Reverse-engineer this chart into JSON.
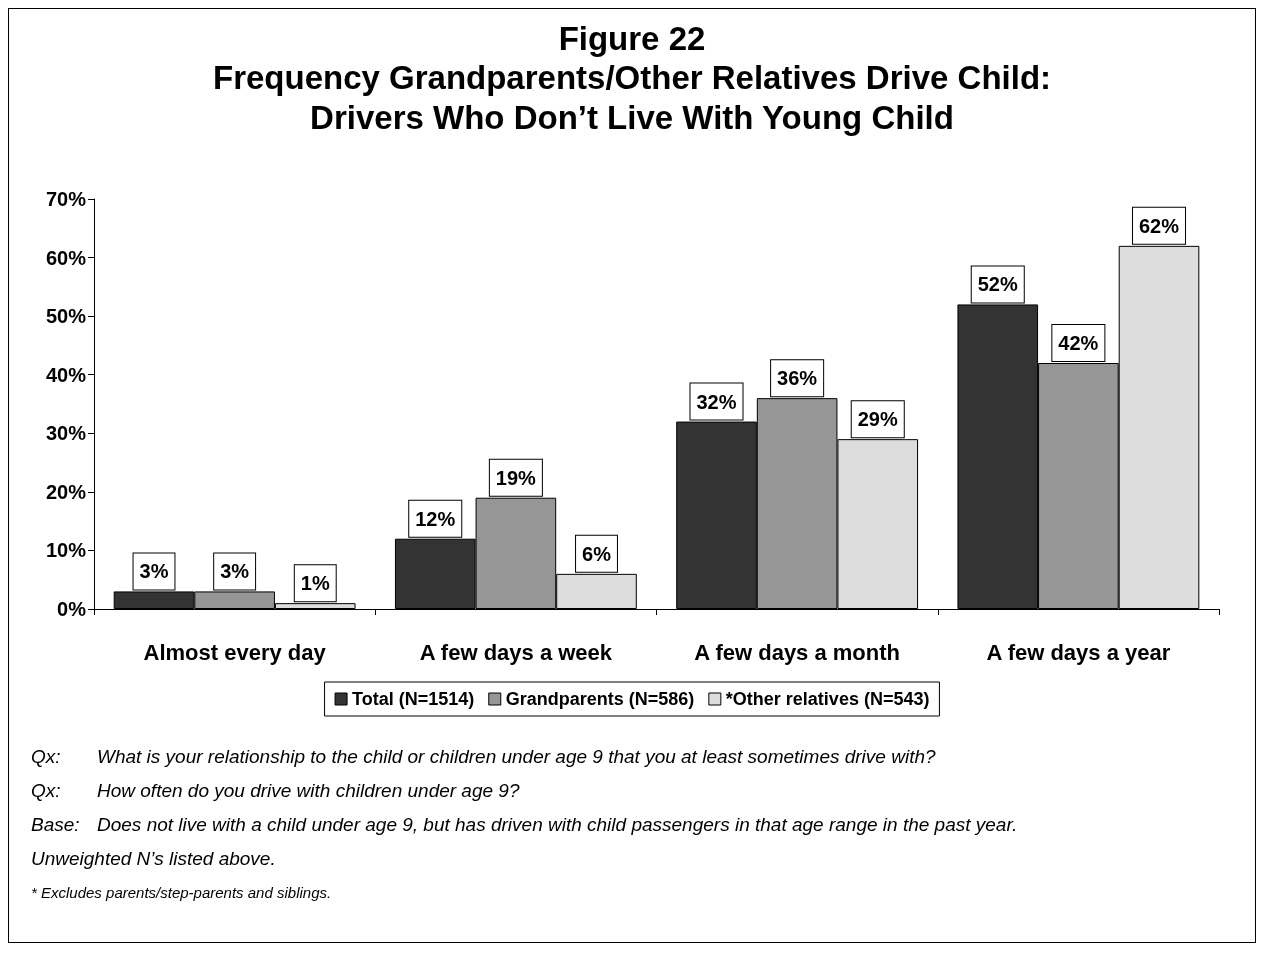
{
  "chart_data": {
    "type": "bar",
    "title": "Figure 22",
    "subtitle": "Frequency Grandparents/Other Relatives Drive Child:\nDrivers Who Don’t Live With Young Child",
    "categories": [
      "Almost every day",
      "A few days a week",
      "A few days a month",
      "A few days a year"
    ],
    "series": [
      {
        "name": "Total (N=1514)",
        "color": "#333333",
        "values": [
          3,
          12,
          32,
          52
        ],
        "value_labels": [
          "3%",
          "12%",
          "32%",
          "52%"
        ]
      },
      {
        "name": "Grandparents (N=586)",
        "color": "#969696",
        "values": [
          3,
          19,
          36,
          42
        ],
        "value_labels": [
          "3%",
          "19%",
          "36%",
          "42%"
        ]
      },
      {
        "name": "*Other relatives (N=543)",
        "color": "#dddddd",
        "values": [
          1,
          6,
          29,
          62
        ],
        "value_labels": [
          "1%",
          "6%",
          "29%",
          "62%"
        ]
      }
    ],
    "ylim": [
      0,
      70
    ],
    "yticks": [
      {
        "value": 0,
        "label": "0%"
      },
      {
        "value": 10,
        "label": "10%"
      },
      {
        "value": 20,
        "label": "20%"
      },
      {
        "value": 30,
        "label": "30%"
      },
      {
        "value": 40,
        "label": "40%"
      },
      {
        "value": 50,
        "label": "50%"
      },
      {
        "value": 60,
        "label": "60%"
      },
      {
        "value": 70,
        "label": "70%"
      }
    ],
    "grid": false,
    "legend": "bottom",
    "annotations": [
      "Qx:\tWhat is your relationship to the child or children under age 9 that you at least sometimes drive with?",
      "Qx:\tHow often do you drive with children under age 9?",
      "Base:\tDoes not live with a child under age 9, but has driven with child passengers in that age range in the past year.",
      "Unweighted N’s listed above.",
      "* Excludes parents/step-parents and siblings."
    ]
  }
}
